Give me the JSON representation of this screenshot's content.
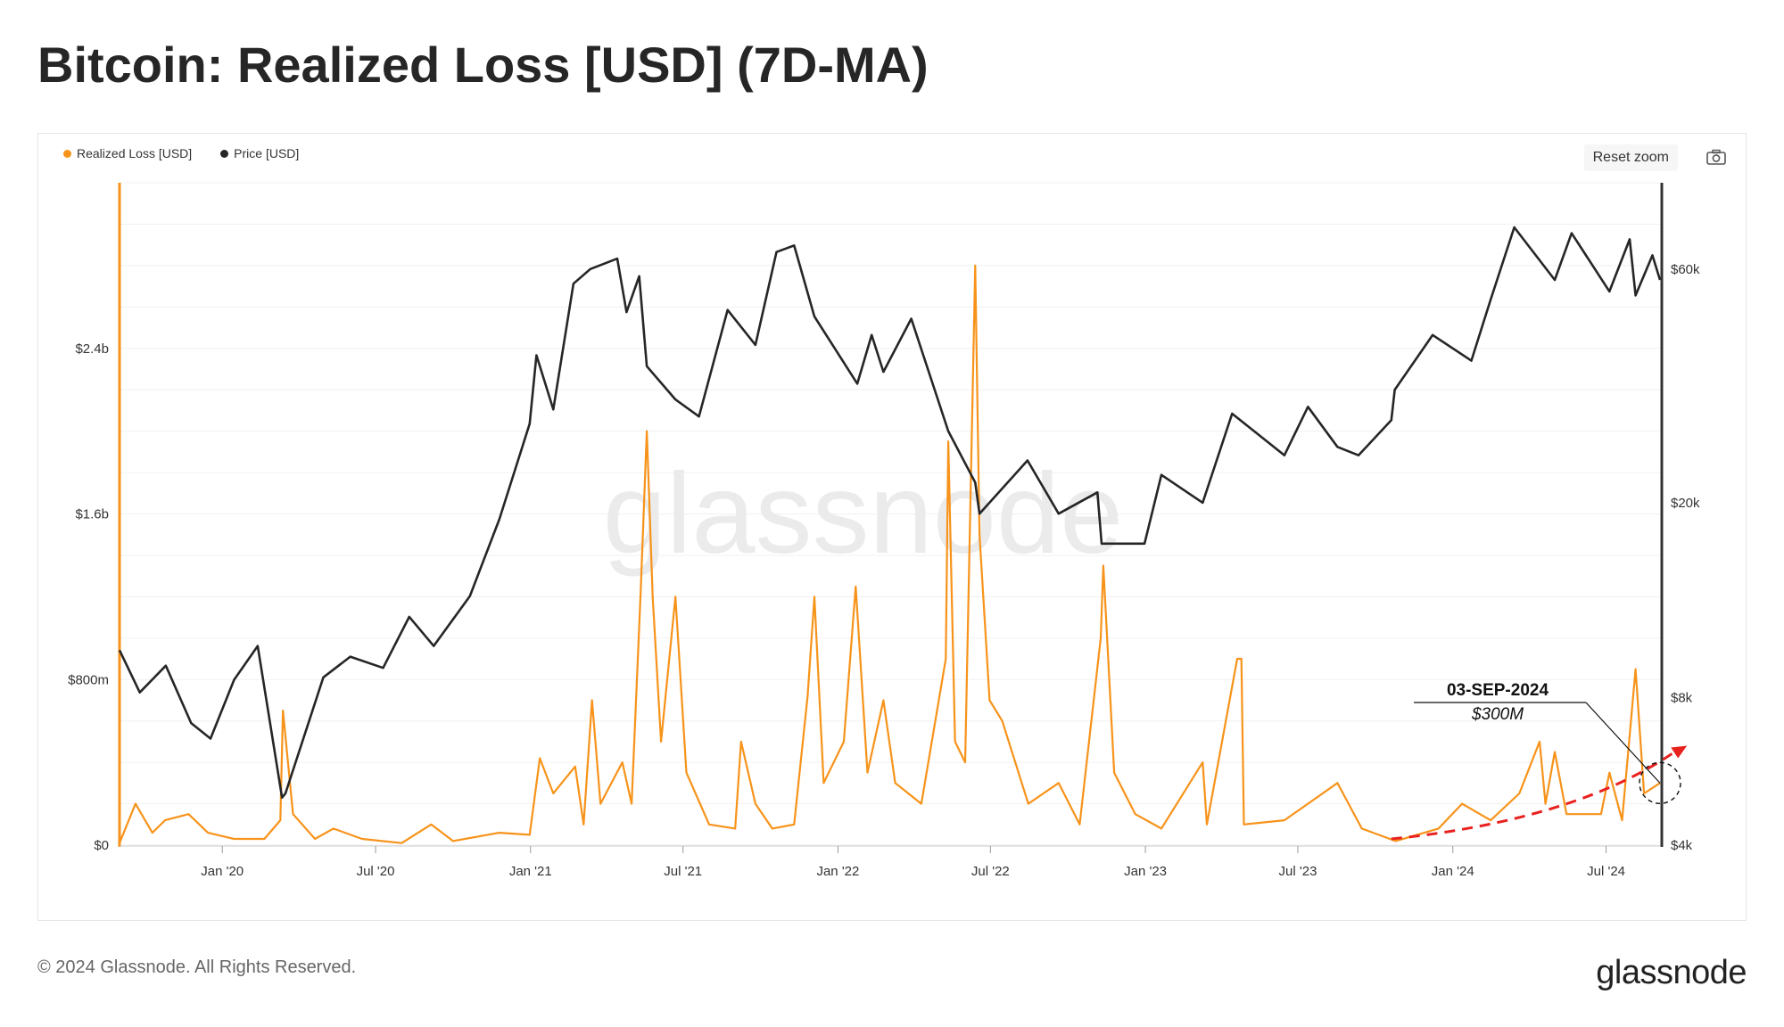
{
  "title": "Bitcoin: Realized Loss [USD] (7D-MA)",
  "toolbar": {
    "reset_zoom_label": "Reset zoom",
    "camera_icon": "camera-icon"
  },
  "footer": {
    "copyright": "© 2024 Glassnode. All Rights Reserved.",
    "logo_text": "glassnode"
  },
  "watermark": "glassnode",
  "colors": {
    "loss": "#f7931a",
    "price": "#262626",
    "trend": "#e8211f"
  },
  "chart_data": {
    "type": "line",
    "title": "Bitcoin: Realized Loss [USD] (7D-MA)",
    "legend": [
      "Realized Loss [USD]",
      "Price [USD]"
    ],
    "legend_position": "top-left",
    "x_range": [
      "2019-09-01",
      "2024-09-03"
    ],
    "x_ticks": [
      {
        "date": "2020-01-01",
        "label": "Jan '20"
      },
      {
        "date": "2020-07-01",
        "label": "Jul '20"
      },
      {
        "date": "2021-01-01",
        "label": "Jan '21"
      },
      {
        "date": "2021-07-01",
        "label": "Jul '21"
      },
      {
        "date": "2022-01-01",
        "label": "Jan '22"
      },
      {
        "date": "2022-07-01",
        "label": "Jul '22"
      },
      {
        "date": "2023-01-01",
        "label": "Jan '23"
      },
      {
        "date": "2023-07-01",
        "label": "Jul '23"
      },
      {
        "date": "2024-01-01",
        "label": "Jan '24"
      },
      {
        "date": "2024-07-01",
        "label": "Jul '24"
      }
    ],
    "y_left": {
      "scale": "linear",
      "range": [
        0,
        3200000000
      ],
      "ticks": [
        {
          "value": 0,
          "label": "$0"
        },
        {
          "value": 800000000,
          "label": "$800m"
        },
        {
          "value": 1600000000,
          "label": "$1.6b"
        },
        {
          "value": 2400000000,
          "label": "$2.4b"
        }
      ]
    },
    "y_right": {
      "scale": "log",
      "range": [
        4000,
        90000
      ],
      "ticks": [
        {
          "value": 4000,
          "label": "$4k"
        },
        {
          "value": 8000,
          "label": "$8k"
        },
        {
          "value": 20000,
          "label": "$20k"
        },
        {
          "value": 60000,
          "label": "$60k"
        }
      ]
    },
    "grid": true,
    "series": [
      {
        "name": "Realized Loss [USD]",
        "axis": "left",
        "color": "#f7931a",
        "points": [
          [
            "2019-09-01",
            10000000
          ],
          [
            "2019-09-20",
            200000000
          ],
          [
            "2019-10-10",
            60000000
          ],
          [
            "2019-10-25",
            120000000
          ],
          [
            "2019-11-22",
            150000000
          ],
          [
            "2019-12-15",
            60000000
          ],
          [
            "2020-01-15",
            30000000
          ],
          [
            "2020-02-20",
            30000000
          ],
          [
            "2020-03-10",
            120000000
          ],
          [
            "2020-03-13",
            650000000
          ],
          [
            "2020-03-25",
            150000000
          ],
          [
            "2020-04-20",
            30000000
          ],
          [
            "2020-05-12",
            80000000
          ],
          [
            "2020-06-15",
            30000000
          ],
          [
            "2020-08-01",
            10000000
          ],
          [
            "2020-09-05",
            100000000
          ],
          [
            "2020-10-01",
            20000000
          ],
          [
            "2020-11-25",
            60000000
          ],
          [
            "2020-12-31",
            50000000
          ],
          [
            "2021-01-12",
            420000000
          ],
          [
            "2021-01-28",
            250000000
          ],
          [
            "2021-02-23",
            380000000
          ],
          [
            "2021-03-05",
            100000000
          ],
          [
            "2021-03-15",
            700000000
          ],
          [
            "2021-03-25",
            200000000
          ],
          [
            "2021-04-20",
            400000000
          ],
          [
            "2021-05-01",
            200000000
          ],
          [
            "2021-05-12",
            1250000000
          ],
          [
            "2021-05-19",
            2000000000
          ],
          [
            "2021-05-26",
            1200000000
          ],
          [
            "2021-06-05",
            500000000
          ],
          [
            "2021-06-22",
            1200000000
          ],
          [
            "2021-07-05",
            350000000
          ],
          [
            "2021-08-01",
            100000000
          ],
          [
            "2021-09-01",
            80000000
          ],
          [
            "2021-09-08",
            500000000
          ],
          [
            "2021-09-25",
            200000000
          ],
          [
            "2021-10-15",
            80000000
          ],
          [
            "2021-11-10",
            100000000
          ],
          [
            "2021-11-26",
            720000000
          ],
          [
            "2021-12-04",
            1200000000
          ],
          [
            "2021-12-15",
            300000000
          ],
          [
            "2022-01-08",
            500000000
          ],
          [
            "2022-01-22",
            1250000000
          ],
          [
            "2022-02-05",
            350000000
          ],
          [
            "2022-02-24",
            700000000
          ],
          [
            "2022-03-10",
            300000000
          ],
          [
            "2022-04-10",
            200000000
          ],
          [
            "2022-05-09",
            900000000
          ],
          [
            "2022-05-12",
            1950000000
          ],
          [
            "2022-05-20",
            500000000
          ],
          [
            "2022-06-01",
            400000000
          ],
          [
            "2022-06-13",
            2800000000
          ],
          [
            "2022-06-18",
            1500000000
          ],
          [
            "2022-06-30",
            700000000
          ],
          [
            "2022-07-15",
            600000000
          ],
          [
            "2022-08-15",
            200000000
          ],
          [
            "2022-09-20",
            300000000
          ],
          [
            "2022-10-15",
            100000000
          ],
          [
            "2022-11-09",
            1000000000
          ],
          [
            "2022-11-12",
            1350000000
          ],
          [
            "2022-11-25",
            350000000
          ],
          [
            "2022-12-20",
            150000000
          ],
          [
            "2023-01-20",
            80000000
          ],
          [
            "2023-03-10",
            400000000
          ],
          [
            "2023-03-15",
            100000000
          ],
          [
            "2023-04-20",
            900000000
          ],
          [
            "2023-04-25",
            900000000
          ],
          [
            "2023-04-28",
            100000000
          ],
          [
            "2023-06-15",
            120000000
          ],
          [
            "2023-08-17",
            300000000
          ],
          [
            "2023-09-15",
            80000000
          ],
          [
            "2023-10-25",
            20000000
          ],
          [
            "2023-12-15",
            80000000
          ],
          [
            "2024-01-12",
            200000000
          ],
          [
            "2024-02-15",
            120000000
          ],
          [
            "2024-03-20",
            250000000
          ],
          [
            "2024-04-13",
            500000000
          ],
          [
            "2024-04-20",
            200000000
          ],
          [
            "2024-05-01",
            450000000
          ],
          [
            "2024-05-15",
            150000000
          ],
          [
            "2024-06-25",
            150000000
          ],
          [
            "2024-07-05",
            350000000
          ],
          [
            "2024-07-20",
            120000000
          ],
          [
            "2024-08-05",
            850000000
          ],
          [
            "2024-08-15",
            250000000
          ],
          [
            "2024-09-03",
            300000000
          ]
        ]
      },
      {
        "name": "Price [USD]",
        "axis": "right",
        "color": "#262626",
        "points": [
          [
            "2019-09-01",
            10000
          ],
          [
            "2019-09-25",
            8200
          ],
          [
            "2019-10-26",
            9300
          ],
          [
            "2019-11-25",
            7100
          ],
          [
            "2019-12-18",
            6600
          ],
          [
            "2020-01-15",
            8700
          ],
          [
            "2020-02-12",
            10200
          ],
          [
            "2020-03-12",
            5000
          ],
          [
            "2020-03-16",
            5100
          ],
          [
            "2020-04-30",
            8800
          ],
          [
            "2020-06-01",
            9700
          ],
          [
            "2020-07-10",
            9200
          ],
          [
            "2020-08-10",
            11700
          ],
          [
            "2020-09-08",
            10200
          ],
          [
            "2020-10-21",
            12900
          ],
          [
            "2020-11-25",
            18500
          ],
          [
            "2020-12-31",
            29000
          ],
          [
            "2021-01-08",
            40000
          ],
          [
            "2021-01-28",
            31000
          ],
          [
            "2021-02-21",
            56000
          ],
          [
            "2021-03-13",
            60000
          ],
          [
            "2021-04-14",
            63000
          ],
          [
            "2021-04-25",
            49000
          ],
          [
            "2021-05-10",
            58000
          ],
          [
            "2021-05-19",
            38000
          ],
          [
            "2021-06-22",
            32500
          ],
          [
            "2021-07-20",
            30000
          ],
          [
            "2021-08-23",
            49500
          ],
          [
            "2021-09-25",
            42000
          ],
          [
            "2021-10-20",
            65000
          ],
          [
            "2021-11-10",
            67000
          ],
          [
            "2021-12-04",
            48000
          ],
          [
            "2022-01-24",
            35000
          ],
          [
            "2022-02-10",
            44000
          ],
          [
            "2022-02-24",
            37000
          ],
          [
            "2022-03-29",
            47500
          ],
          [
            "2022-05-12",
            28000
          ],
          [
            "2022-06-13",
            22000
          ],
          [
            "2022-06-18",
            19000
          ],
          [
            "2022-08-14",
            24400
          ],
          [
            "2022-09-20",
            19000
          ],
          [
            "2022-11-05",
            21000
          ],
          [
            "2022-11-10",
            16500
          ],
          [
            "2022-12-31",
            16500
          ],
          [
            "2023-01-20",
            22800
          ],
          [
            "2023-03-10",
            20000
          ],
          [
            "2023-04-14",
            30400
          ],
          [
            "2023-06-15",
            25000
          ],
          [
            "2023-07-13",
            31400
          ],
          [
            "2023-08-17",
            26000
          ],
          [
            "2023-09-11",
            25000
          ],
          [
            "2023-10-20",
            29500
          ],
          [
            "2023-10-24",
            34000
          ],
          [
            "2023-12-08",
            44000
          ],
          [
            "2024-01-23",
            39000
          ],
          [
            "2024-02-15",
            52000
          ],
          [
            "2024-03-14",
            73000
          ],
          [
            "2024-05-01",
            57000
          ],
          [
            "2024-05-21",
            71000
          ],
          [
            "2024-07-05",
            54000
          ],
          [
            "2024-07-29",
            69000
          ],
          [
            "2024-08-05",
            53000
          ],
          [
            "2024-08-25",
            64000
          ],
          [
            "2024-09-03",
            57000
          ]
        ]
      }
    ],
    "annotations": [
      {
        "date_label": "03-SEP-2024",
        "value_label": "$300M",
        "date": "2024-09-03",
        "value": 300000000
      }
    ],
    "trend_arrow": {
      "color": "#e8211f",
      "style": "dashed",
      "from": "2023-10-20",
      "to": "2024-10-05"
    }
  }
}
